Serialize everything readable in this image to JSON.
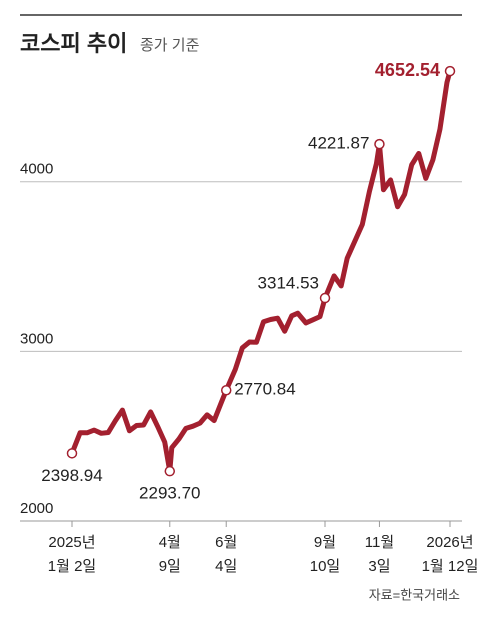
{
  "chart_data": {
    "type": "line",
    "title": "코스피 추이",
    "subtitle": "종가 기준",
    "source": "자료=한국거래소",
    "x": [
      "2025-01-02",
      "2025-01-10",
      "2025-01-17",
      "2025-01-24",
      "2025-01-31",
      "2025-02-07",
      "2025-02-14",
      "2025-02-21",
      "2025-02-28",
      "2025-03-07",
      "2025-03-14",
      "2025-03-21",
      "2025-03-28",
      "2025-04-04",
      "2025-04-09",
      "2025-04-11",
      "2025-04-18",
      "2025-04-25",
      "2025-05-02",
      "2025-05-09",
      "2025-05-16",
      "2025-05-23",
      "2025-05-30",
      "2025-06-04",
      "2025-06-13",
      "2025-06-20",
      "2025-06-27",
      "2025-07-04",
      "2025-07-11",
      "2025-07-18",
      "2025-07-25",
      "2025-08-01",
      "2025-08-08",
      "2025-08-14",
      "2025-08-22",
      "2025-08-29",
      "2025-09-05",
      "2025-09-10",
      "2025-09-19",
      "2025-09-26",
      "2025-10-02",
      "2025-10-17",
      "2025-10-24",
      "2025-10-31",
      "2025-11-03",
      "2025-11-07",
      "2025-11-14",
      "2025-11-21",
      "2025-11-28",
      "2025-12-05",
      "2025-12-12",
      "2025-12-19",
      "2025-12-26",
      "2026-01-02",
      "2026-01-09",
      "2026-01-12"
    ],
    "series": [
      {
        "name": "코스피",
        "color": "#a3202f",
        "values": [
          2398.94,
          2520,
          2520,
          2536,
          2517,
          2522,
          2591,
          2654,
          2532,
          2563,
          2566,
          2643,
          2557,
          2465,
          2293.7,
          2432,
          2483,
          2546,
          2559,
          2577,
          2626,
          2592,
          2697,
          2770.84,
          2894,
          3021,
          3055,
          3054,
          3175,
          3188,
          3196,
          3119,
          3210,
          3225,
          3168,
          3186,
          3205,
          3314.53,
          3445,
          3386,
          3549,
          3748,
          3941,
          4107,
          4221.87,
          3953,
          4011,
          3853,
          3926,
          4100,
          4167,
          4020,
          4129,
          4309,
          4586,
          4652.54
        ],
        "value_labels": [
          "2398.94",
          null,
          null,
          null,
          null,
          null,
          null,
          null,
          null,
          null,
          null,
          null,
          null,
          null,
          "2293.70",
          null,
          null,
          null,
          null,
          null,
          null,
          null,
          null,
          "2770.84",
          null,
          null,
          null,
          null,
          null,
          null,
          null,
          null,
          null,
          null,
          null,
          null,
          null,
          "3314.53",
          null,
          null,
          null,
          null,
          null,
          null,
          "4221.87",
          null,
          null,
          null,
          null,
          null,
          null,
          null,
          null,
          null,
          null,
          "4652.54"
        ]
      }
    ],
    "xlim": [
      "2025-01-02",
      "2026-01-12"
    ],
    "xticks": [
      {
        "value": "2025-01-02",
        "label": [
          "2025년",
          "1월 2일"
        ]
      },
      {
        "value": "2025-04-09",
        "label": [
          "4월",
          "9일"
        ]
      },
      {
        "value": "2025-06-04",
        "label": [
          "6월",
          "4일"
        ]
      },
      {
        "value": "2025-09-10",
        "label": [
          "9월",
          "10일"
        ]
      },
      {
        "value": "2025-11-03",
        "label": [
          "11월",
          "3일"
        ]
      },
      {
        "value": "2026-01-12",
        "label": [
          "2026년",
          "1월 12일"
        ]
      }
    ],
    "ylim": [
      2000,
      4830
    ],
    "yticks": [
      2000,
      3000,
      4000
    ],
    "grid": true
  }
}
